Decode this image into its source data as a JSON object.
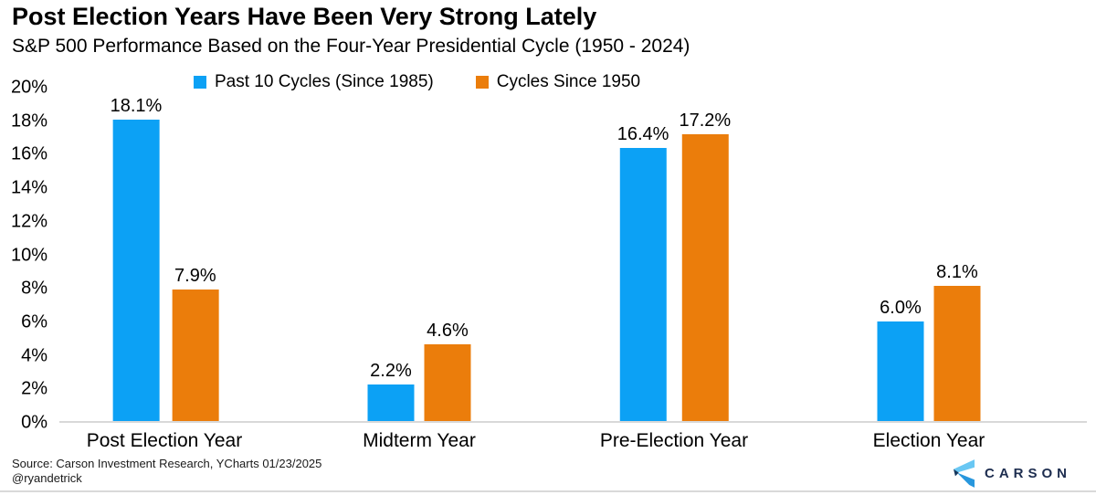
{
  "header": {
    "title": "Post Election Years Have Been Very Strong Lately",
    "subtitle": "S&P 500 Performance Based on the Four-Year Presidential Cycle (1950 - 2024)"
  },
  "legend": {
    "items": [
      {
        "label": "Past 10 Cycles (Since 1985)",
        "color": "#0ca1f5"
      },
      {
        "label": "Cycles Since 1950",
        "color": "#eb7d0b"
      }
    ]
  },
  "chart_data": {
    "type": "bar",
    "title": "Post Election Years Have Been Very Strong Lately",
    "subtitle": "S&P 500 Performance Based on the Four-Year Presidential Cycle (1950 - 2024)",
    "categories": [
      "Post Election Year",
      "Midterm Year",
      "Pre-Election Year",
      "Election Year"
    ],
    "series": [
      {
        "name": "Past 10 Cycles (Since 1985)",
        "color": "#0ca1f5",
        "values": [
          18.1,
          2.2,
          16.4,
          6.0
        ],
        "value_labels": [
          "18.1%",
          "2.2%",
          "16.4%",
          "6.0%"
        ]
      },
      {
        "name": "Cycles Since 1950",
        "color": "#eb7d0b",
        "values": [
          7.9,
          4.6,
          17.2,
          8.1
        ],
        "value_labels": [
          "7.9%",
          "4.6%",
          "17.2%",
          "8.1%"
        ]
      }
    ],
    "ylabel": "",
    "xlabel": "",
    "ylim": [
      0,
      20
    ],
    "yticks": [
      "0%",
      "2%",
      "4%",
      "6%",
      "8%",
      "10%",
      "12%",
      "14%",
      "16%",
      "18%",
      "20%"
    ],
    "grid": false,
    "legend_position": "top"
  },
  "footer": {
    "source": "Source: Carson Investment Research, YCharts 01/23/2025",
    "handle": "@ryandetrick",
    "logo_text": "CARSON"
  },
  "colors": {
    "axis_line": "#d8d8d8",
    "bottom_rule": "#d9d9d9",
    "logo_navy": "#1d2d4f",
    "logo_light_blue": "#69c7f3",
    "logo_mid_blue": "#2897dd"
  }
}
